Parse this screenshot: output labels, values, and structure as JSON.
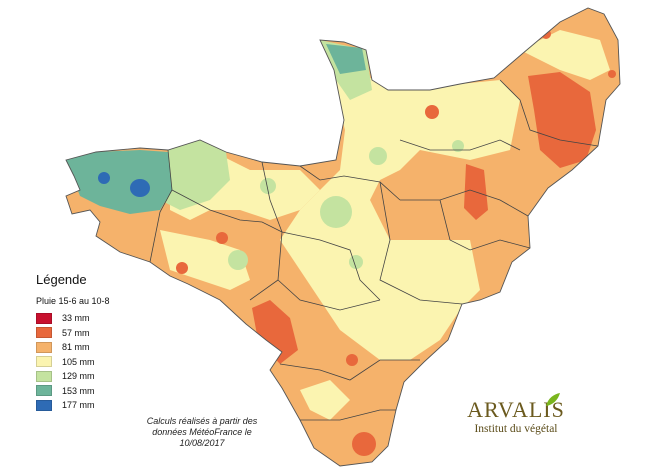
{
  "legend": {
    "title": "Légende",
    "subtitle": "Pluie 15-6 au 10-8",
    "classes": [
      {
        "label": "33 mm",
        "color": "#c8102e"
      },
      {
        "label": "57 mm",
        "color": "#e8683c"
      },
      {
        "label": "81 mm",
        "color": "#f5b26b"
      },
      {
        "label": "105 mm",
        "color": "#fbf4b0"
      },
      {
        "label": "129 mm",
        "color": "#c4e3a0"
      },
      {
        "label": "153 mm",
        "color": "#6db49a"
      },
      {
        "label": "177 mm",
        "color": "#2e6bb5"
      }
    ]
  },
  "source_note": {
    "line1": "Calculs réalisés à partir des",
    "line2": "données MétéoFrance le",
    "line3": "10/08/2017"
  },
  "logo": {
    "name": "ARVALIS",
    "tagline": "Institut du végétal",
    "leaf_color": "#7ab51d",
    "text_color": "#6b5a1e"
  },
  "region_fill_colors": {
    "orange": "#f5b26b",
    "yellow": "#fbf4b0",
    "light_green": "#c4e3a0",
    "teal": "#6db49a",
    "blue": "#2e6bb5",
    "red_orange": "#e8683c"
  }
}
